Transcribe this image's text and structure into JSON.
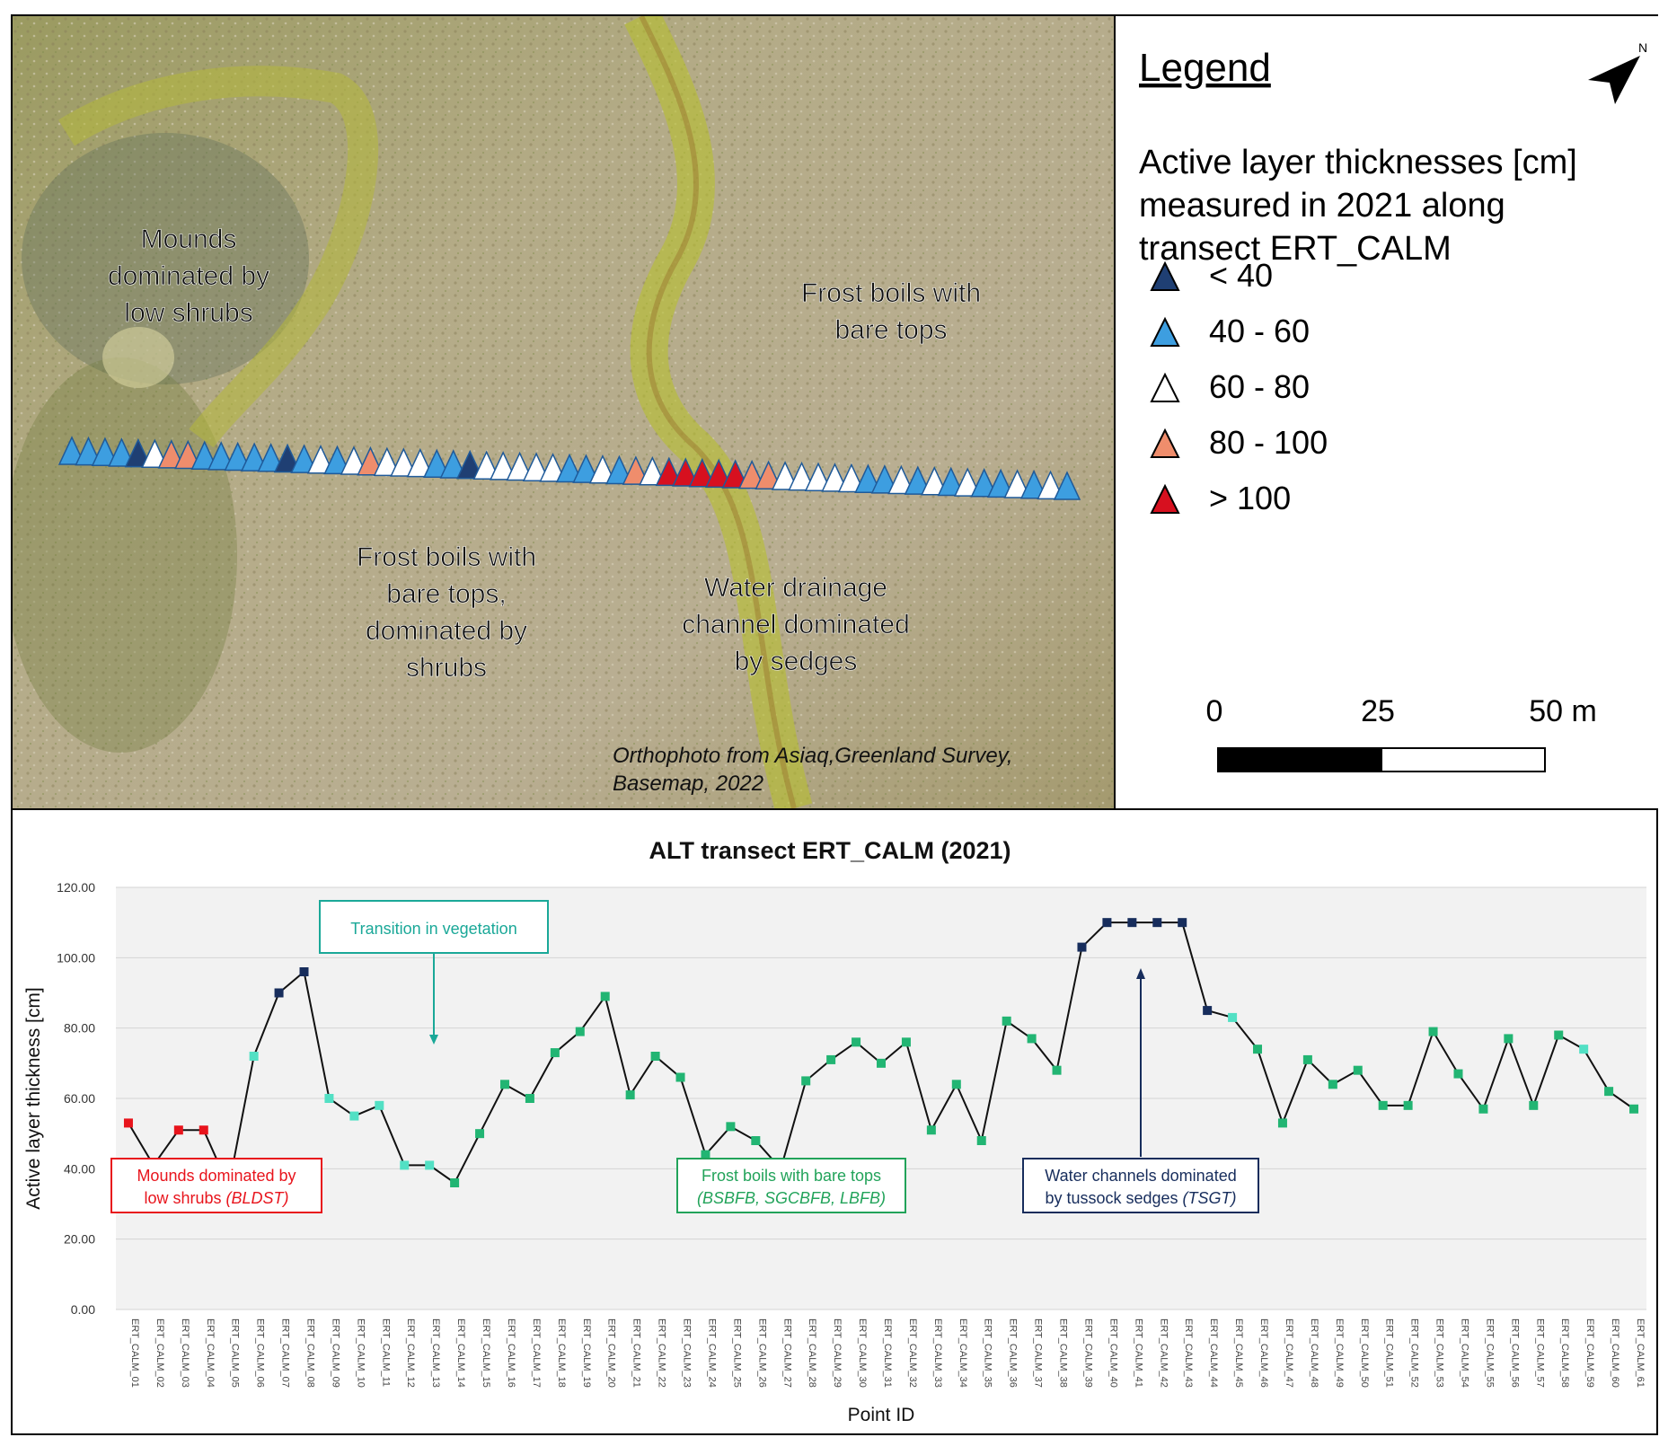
{
  "map": {
    "labels": {
      "mounds": [
        "Mounds",
        "dominated by",
        "low shrubs"
      ],
      "frost_top": [
        "Frost boils with",
        "bare tops"
      ],
      "frost_shrubs": [
        "Frost boils with",
        "bare tops,",
        "dominated by",
        "shrubs"
      ],
      "drainage": [
        "Water drainage",
        "channel dominated",
        "by sedges"
      ]
    },
    "credit": [
      "Orthophoto from Asiaq,Greenland Survey,",
      "Basemap, 2022"
    ]
  },
  "legend": {
    "title": "Legend",
    "heading": [
      "Active layer thicknesses [cm]",
      "measured in 2021 along",
      "transect ERT_CALM"
    ],
    "classes": [
      {
        "label": "< 40",
        "color": "#1f3f73"
      },
      {
        "label": "40 - 60",
        "color": "#3d9ee0"
      },
      {
        "label": "60 - 80",
        "color": "#ffffff"
      },
      {
        "label": "80 - 100",
        "color": "#ef8d6c"
      },
      {
        "label": "> 100",
        "color": "#d7101f"
      }
    ],
    "scale": {
      "ticks": [
        "0",
        "25",
        "50 m"
      ]
    },
    "north_arrow": "north-arrow-icon"
  },
  "transect_markers": {
    "classes": [
      "40 - 60",
      "40 - 60",
      "40 - 60",
      "40 - 60",
      "< 40",
      "60 - 80",
      "80 - 100",
      "80 - 100",
      "40 - 60",
      "40 - 60",
      "40 - 60",
      "40 - 60",
      "40 - 60",
      "< 40",
      "40 - 60",
      "60 - 80",
      "40 - 60",
      "60 - 80",
      "80 - 100",
      "60 - 80",
      "60 - 80",
      "60 - 80",
      "40 - 60",
      "40 - 60",
      "< 40",
      "60 - 80",
      "60 - 80",
      "60 - 80",
      "60 - 80",
      "60 - 80",
      "40 - 60",
      "40 - 60",
      "60 - 80",
      "40 - 60",
      "80 - 100",
      "60 - 80",
      "> 100",
      "> 100",
      "> 100",
      "> 100",
      "> 100",
      "80 - 100",
      "80 - 100",
      "60 - 80",
      "60 - 80",
      "60 - 80",
      "60 - 80",
      "60 - 80",
      "40 - 60",
      "40 - 60",
      "60 - 80",
      "40 - 60",
      "60 - 80",
      "40 - 60",
      "60 - 80",
      "40 - 60",
      "40 - 60",
      "60 - 80",
      "40 - 60",
      "60 - 80",
      "40 - 60"
    ]
  },
  "chart_data": {
    "type": "line",
    "title": "ALT transect ERT_CALM (2021)",
    "xlabel": "Point ID",
    "ylabel": "Active layer thickness [cm]",
    "ylim": [
      0,
      120
    ],
    "yticks": [
      "0.00",
      "20.00",
      "40.00",
      "60.00",
      "80.00",
      "100.00",
      "120.00"
    ],
    "grid": true,
    "categories": [
      "ERT_CALM_01",
      "ERT_CALM_02",
      "ERT_CALM_03",
      "ERT_CALM_04",
      "ERT_CALM_05",
      "ERT_CALM_06",
      "ERT_CALM_07",
      "ERT_CALM_08",
      "ERT_CALM_09",
      "ERT_CALM_10",
      "ERT_CALM_11",
      "ERT_CALM_12",
      "ERT_CALM_13",
      "ERT_CALM_14",
      "ERT_CALM_15",
      "ERT_CALM_16",
      "ERT_CALM_17",
      "ERT_CALM_18",
      "ERT_CALM_19",
      "ERT_CALM_20",
      "ERT_CALM_21",
      "ERT_CALM_22",
      "ERT_CALM_23",
      "ERT_CALM_24",
      "ERT_CALM_25",
      "ERT_CALM_26",
      "ERT_CALM_27",
      "ERT_CALM_28",
      "ERT_CALM_29",
      "ERT_CALM_30",
      "ERT_CALM_31",
      "ERT_CALM_32",
      "ERT_CALM_33",
      "ERT_CALM_34",
      "ERT_CALM_35",
      "ERT_CALM_36",
      "ERT_CALM_37",
      "ERT_CALM_38",
      "ERT_CALM_39",
      "ERT_CALM_40",
      "ERT_CALM_41",
      "ERT_CALM_42",
      "ERT_CALM_43",
      "ERT_CALM_44",
      "ERT_CALM_45",
      "ERT_CALM_46",
      "ERT_CALM_47",
      "ERT_CALM_48",
      "ERT_CALM_49",
      "ERT_CALM_50",
      "ERT_CALM_51",
      "ERT_CALM_52",
      "ERT_CALM_53",
      "ERT_CALM_54",
      "ERT_CALM_55",
      "ERT_CALM_56",
      "ERT_CALM_57",
      "ERT_CALM_58",
      "ERT_CALM_59",
      "ERT_CALM_60",
      "ERT_CALM_61"
    ],
    "values": [
      53,
      41,
      51,
      51,
      35,
      72,
      90,
      96,
      60,
      55,
      58,
      41,
      41,
      36,
      50,
      64,
      60,
      73,
      79,
      89,
      61,
      72,
      66,
      44,
      52,
      48,
      40,
      65,
      71,
      76,
      70,
      76,
      51,
      64,
      48,
      82,
      77,
      68,
      103,
      110,
      110,
      110,
      110,
      85,
      83,
      74,
      53,
      71,
      64,
      68,
      58,
      58,
      79,
      67,
      57,
      77,
      58,
      78,
      74,
      62,
      57
    ],
    "marker_colors": [
      "#e8141c",
      "#e8141c",
      "#e8141c",
      "#e8141c",
      "#e8141c",
      "#52e0c4",
      "#172d5c",
      "#172d5c",
      "#52e0c4",
      "#52e0c4",
      "#52e0c4",
      "#52e0c4",
      "#52e0c4",
      "#22b573",
      "#22b573",
      "#22b573",
      "#22b573",
      "#22b573",
      "#22b573",
      "#22b573",
      "#22b573",
      "#22b573",
      "#22b573",
      "#22b573",
      "#22b573",
      "#22b573",
      "#22b573",
      "#22b573",
      "#22b573",
      "#22b573",
      "#22b573",
      "#22b573",
      "#22b573",
      "#22b573",
      "#22b573",
      "#22b573",
      "#22b573",
      "#22b573",
      "#172d5c",
      "#172d5c",
      "#172d5c",
      "#172d5c",
      "#172d5c",
      "#172d5c",
      "#52e0c4",
      "#22b573",
      "#22b573",
      "#22b573",
      "#22b573",
      "#22b573",
      "#22b573",
      "#22b573",
      "#22b573",
      "#22b573",
      "#22b573",
      "#22b573",
      "#22b573",
      "#22b573",
      "#52e0c4",
      "#22b573",
      "#22b573"
    ],
    "annotations": {
      "transition": {
        "text": "Transition in vegetation",
        "color": "#1aa898"
      },
      "mounds": {
        "lines": [
          "Mounds dominated by",
          "low shrubs ",
          "(BLDST)"
        ],
        "color": "#e8141c"
      },
      "frost": {
        "lines": [
          "Frost boils with bare tops",
          "(BSBFB, SGCBFB, LBFB)"
        ],
        "color": "#22a35a"
      },
      "water": {
        "lines": [
          "Water channels dominated",
          "by tussock sedges ",
          "(TSGT)"
        ],
        "color": "#172d5c"
      }
    }
  }
}
